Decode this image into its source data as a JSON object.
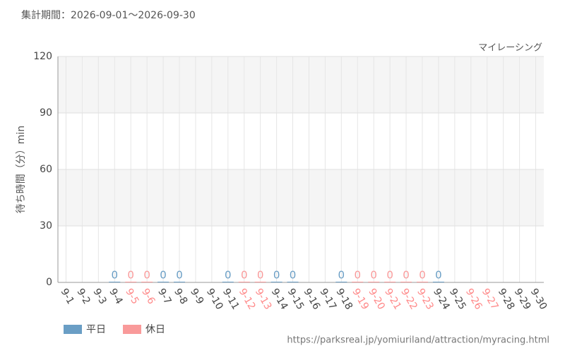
{
  "chart_data": {
    "type": "bar",
    "title": "集計期間：2026-09-01～2026-09-30",
    "subtitle": "マイレーシング",
    "ylabel": "待ち時間（分）min",
    "source": "https://parksreal.jp/yomiuriland/attraction/myracing.html",
    "categories": [
      "9-1",
      "9-2",
      "9-3",
      "9-4",
      "9-5",
      "9-6",
      "9-7",
      "9-8",
      "9-9",
      "9-10",
      "9-11",
      "9-12",
      "9-13",
      "9-14",
      "9-15",
      "9-16",
      "9-17",
      "9-18",
      "9-19",
      "9-20",
      "9-21",
      "9-22",
      "9-23",
      "9-24",
      "9-25",
      "9-26",
      "9-27",
      "9-28",
      "9-29",
      "9-30"
    ],
    "category_colors": [
      "#444",
      "#444",
      "#444",
      "#444",
      "#f88",
      "#f88",
      "#444",
      "#444",
      "#444",
      "#444",
      "#444",
      "#f88",
      "#f88",
      "#444",
      "#444",
      "#444",
      "#444",
      "#444",
      "#f88",
      "#f88",
      "#f88",
      "#f88",
      "#f88",
      "#444",
      "#444",
      "#f88",
      "#f88",
      "#444",
      "#444",
      "#444"
    ],
    "series": [
      {
        "name": "平日",
        "color": "#6a9ec5",
        "values": [
          null,
          null,
          null,
          0,
          null,
          null,
          0,
          0,
          null,
          null,
          0,
          null,
          null,
          0,
          0,
          null,
          null,
          0,
          null,
          null,
          null,
          null,
          null,
          0,
          null,
          null,
          null,
          null,
          null,
          null
        ]
      },
      {
        "name": "休日",
        "color": "#f99a9a",
        "values": [
          null,
          null,
          null,
          null,
          0,
          0,
          null,
          null,
          null,
          null,
          null,
          0,
          0,
          null,
          null,
          null,
          null,
          null,
          0,
          0,
          0,
          0,
          0,
          null,
          null,
          null,
          null,
          null,
          null,
          null
        ]
      }
    ],
    "ylim": [
      0,
      120
    ],
    "yticks": [
      0,
      30,
      60,
      90,
      120
    ],
    "grid": true
  }
}
